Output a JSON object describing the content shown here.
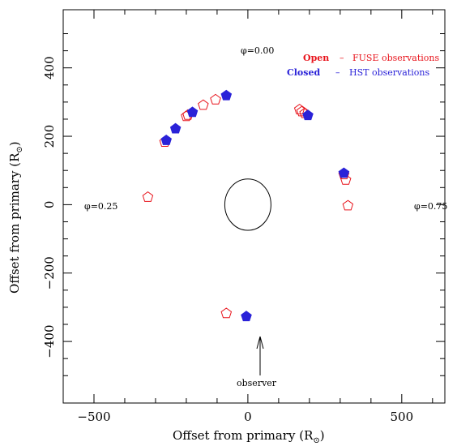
{
  "chart_data": {
    "type": "scatter",
    "xlabel_main": "Offset from primary (R",
    "xlabel_sub": "⊙",
    "xlabel_end": ")",
    "ylabel_main": "Offset from primary (R",
    "ylabel_sub": "⊙",
    "ylabel_end": ")",
    "xlim": [
      -600,
      640
    ],
    "ylim": [
      -580,
      570
    ],
    "x_ticks": [
      -500,
      0,
      500
    ],
    "x_tick_labels": [
      "−500",
      "0",
      "500"
    ],
    "y_ticks": [
      -400,
      -200,
      0,
      200,
      400
    ],
    "y_tick_labels": [
      "−400",
      "−200",
      "0",
      "200",
      "400"
    ],
    "legend": {
      "open_label": "Open",
      "open_desc": "FUSE observations",
      "closed_label": "Closed",
      "closed_desc": "HST observations",
      "dash": "–",
      "placement": "top-right"
    },
    "annotations": {
      "phi_000": "φ=0.00",
      "phi_025": "φ=0.25",
      "phi_075": "φ=0.75",
      "observer": "observer"
    },
    "ellipse": {
      "cx": 0,
      "cy": 0,
      "rx": 75,
      "ry": 75
    },
    "series": [
      {
        "name": "FUSE observations",
        "marker": "open-pentagon",
        "color": "#e8141c",
        "points": [
          [
            -325,
            22
          ],
          [
            -270,
            183
          ],
          [
            -200,
            258
          ],
          [
            -195,
            262
          ],
          [
            -145,
            291
          ],
          [
            -105,
            307
          ],
          [
            -70,
            -318
          ],
          [
            168,
            278
          ],
          [
            175,
            272
          ],
          [
            185,
            267
          ],
          [
            312,
            88
          ],
          [
            318,
            72
          ],
          [
            325,
            -3
          ]
        ]
      },
      {
        "name": "HST observations",
        "marker": "filled-pentagon",
        "color": "#2a22d8",
        "points": [
          [
            -265,
            188
          ],
          [
            -235,
            222
          ],
          [
            -180,
            270
          ],
          [
            -70,
            319
          ],
          [
            195,
            261
          ],
          [
            312,
            92
          ],
          [
            -5,
            -327
          ]
        ]
      }
    ]
  }
}
